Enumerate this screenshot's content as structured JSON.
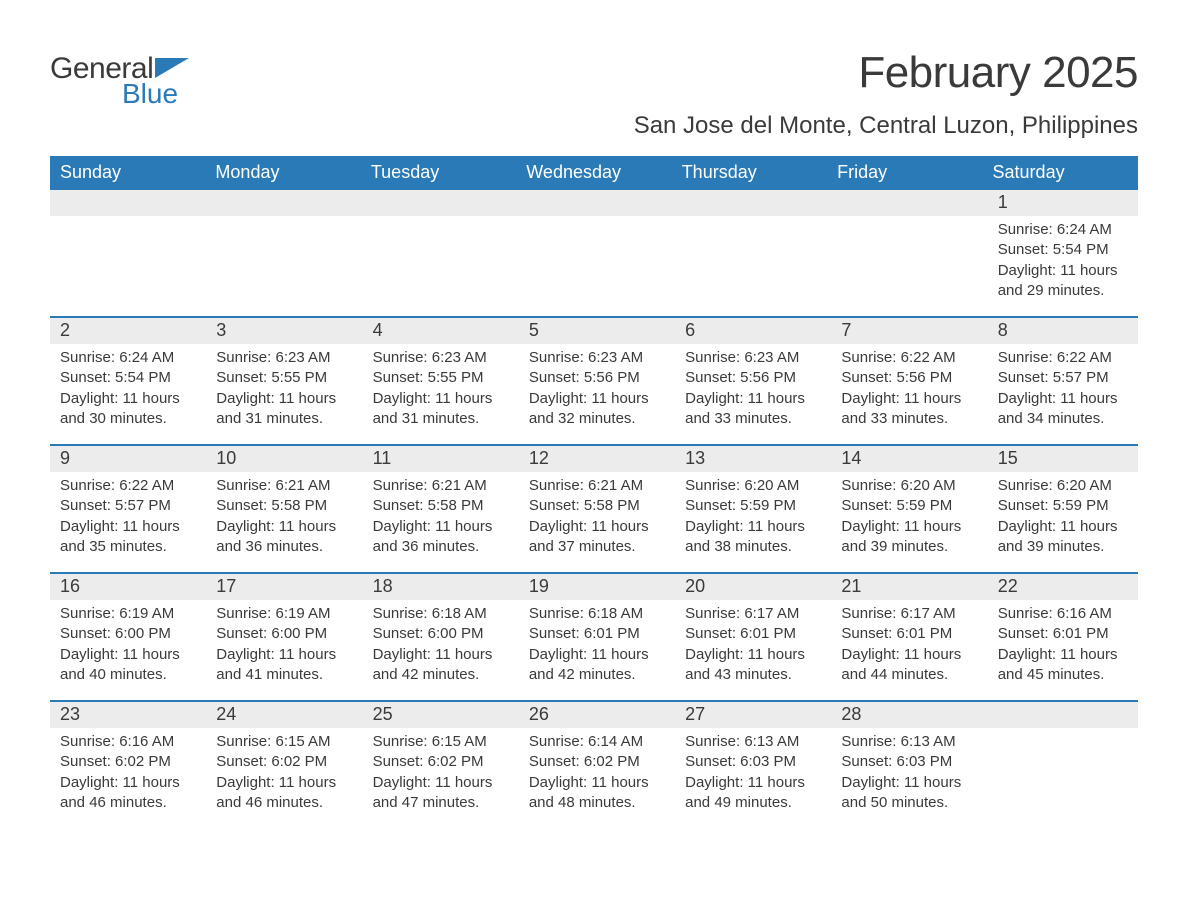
{
  "brand": {
    "part1": "General",
    "part2": "Blue",
    "logo_color": "#2a7ab8"
  },
  "title": "February 2025",
  "location": "San Jose del Monte, Central Luzon, Philippines",
  "colors": {
    "header_bg": "#2a7ab8",
    "header_text": "#ffffff",
    "daynum_bg": "#ececec",
    "text": "#3a3a3a",
    "week_border": "#2a7ab8",
    "background": "#ffffff"
  },
  "typography": {
    "title_fontsize": 44,
    "location_fontsize": 24,
    "dow_fontsize": 18,
    "daynum_fontsize": 18,
    "detail_fontsize": 15
  },
  "dow": [
    "Sunday",
    "Monday",
    "Tuesday",
    "Wednesday",
    "Thursday",
    "Friday",
    "Saturday"
  ],
  "weeks": [
    [
      {
        "n": "",
        "sunrise": "",
        "sunset": "",
        "daylight": ""
      },
      {
        "n": "",
        "sunrise": "",
        "sunset": "",
        "daylight": ""
      },
      {
        "n": "",
        "sunrise": "",
        "sunset": "",
        "daylight": ""
      },
      {
        "n": "",
        "sunrise": "",
        "sunset": "",
        "daylight": ""
      },
      {
        "n": "",
        "sunrise": "",
        "sunset": "",
        "daylight": ""
      },
      {
        "n": "",
        "sunrise": "",
        "sunset": "",
        "daylight": ""
      },
      {
        "n": "1",
        "sunrise": "Sunrise: 6:24 AM",
        "sunset": "Sunset: 5:54 PM",
        "daylight": "Daylight: 11 hours and 29 minutes."
      }
    ],
    [
      {
        "n": "2",
        "sunrise": "Sunrise: 6:24 AM",
        "sunset": "Sunset: 5:54 PM",
        "daylight": "Daylight: 11 hours and 30 minutes."
      },
      {
        "n": "3",
        "sunrise": "Sunrise: 6:23 AM",
        "sunset": "Sunset: 5:55 PM",
        "daylight": "Daylight: 11 hours and 31 minutes."
      },
      {
        "n": "4",
        "sunrise": "Sunrise: 6:23 AM",
        "sunset": "Sunset: 5:55 PM",
        "daylight": "Daylight: 11 hours and 31 minutes."
      },
      {
        "n": "5",
        "sunrise": "Sunrise: 6:23 AM",
        "sunset": "Sunset: 5:56 PM",
        "daylight": "Daylight: 11 hours and 32 minutes."
      },
      {
        "n": "6",
        "sunrise": "Sunrise: 6:23 AM",
        "sunset": "Sunset: 5:56 PM",
        "daylight": "Daylight: 11 hours and 33 minutes."
      },
      {
        "n": "7",
        "sunrise": "Sunrise: 6:22 AM",
        "sunset": "Sunset: 5:56 PM",
        "daylight": "Daylight: 11 hours and 33 minutes."
      },
      {
        "n": "8",
        "sunrise": "Sunrise: 6:22 AM",
        "sunset": "Sunset: 5:57 PM",
        "daylight": "Daylight: 11 hours and 34 minutes."
      }
    ],
    [
      {
        "n": "9",
        "sunrise": "Sunrise: 6:22 AM",
        "sunset": "Sunset: 5:57 PM",
        "daylight": "Daylight: 11 hours and 35 minutes."
      },
      {
        "n": "10",
        "sunrise": "Sunrise: 6:21 AM",
        "sunset": "Sunset: 5:58 PM",
        "daylight": "Daylight: 11 hours and 36 minutes."
      },
      {
        "n": "11",
        "sunrise": "Sunrise: 6:21 AM",
        "sunset": "Sunset: 5:58 PM",
        "daylight": "Daylight: 11 hours and 36 minutes."
      },
      {
        "n": "12",
        "sunrise": "Sunrise: 6:21 AM",
        "sunset": "Sunset: 5:58 PM",
        "daylight": "Daylight: 11 hours and 37 minutes."
      },
      {
        "n": "13",
        "sunrise": "Sunrise: 6:20 AM",
        "sunset": "Sunset: 5:59 PM",
        "daylight": "Daylight: 11 hours and 38 minutes."
      },
      {
        "n": "14",
        "sunrise": "Sunrise: 6:20 AM",
        "sunset": "Sunset: 5:59 PM",
        "daylight": "Daylight: 11 hours and 39 minutes."
      },
      {
        "n": "15",
        "sunrise": "Sunrise: 6:20 AM",
        "sunset": "Sunset: 5:59 PM",
        "daylight": "Daylight: 11 hours and 39 minutes."
      }
    ],
    [
      {
        "n": "16",
        "sunrise": "Sunrise: 6:19 AM",
        "sunset": "Sunset: 6:00 PM",
        "daylight": "Daylight: 11 hours and 40 minutes."
      },
      {
        "n": "17",
        "sunrise": "Sunrise: 6:19 AM",
        "sunset": "Sunset: 6:00 PM",
        "daylight": "Daylight: 11 hours and 41 minutes."
      },
      {
        "n": "18",
        "sunrise": "Sunrise: 6:18 AM",
        "sunset": "Sunset: 6:00 PM",
        "daylight": "Daylight: 11 hours and 42 minutes."
      },
      {
        "n": "19",
        "sunrise": "Sunrise: 6:18 AM",
        "sunset": "Sunset: 6:01 PM",
        "daylight": "Daylight: 11 hours and 42 minutes."
      },
      {
        "n": "20",
        "sunrise": "Sunrise: 6:17 AM",
        "sunset": "Sunset: 6:01 PM",
        "daylight": "Daylight: 11 hours and 43 minutes."
      },
      {
        "n": "21",
        "sunrise": "Sunrise: 6:17 AM",
        "sunset": "Sunset: 6:01 PM",
        "daylight": "Daylight: 11 hours and 44 minutes."
      },
      {
        "n": "22",
        "sunrise": "Sunrise: 6:16 AM",
        "sunset": "Sunset: 6:01 PM",
        "daylight": "Daylight: 11 hours and 45 minutes."
      }
    ],
    [
      {
        "n": "23",
        "sunrise": "Sunrise: 6:16 AM",
        "sunset": "Sunset: 6:02 PM",
        "daylight": "Daylight: 11 hours and 46 minutes."
      },
      {
        "n": "24",
        "sunrise": "Sunrise: 6:15 AM",
        "sunset": "Sunset: 6:02 PM",
        "daylight": "Daylight: 11 hours and 46 minutes."
      },
      {
        "n": "25",
        "sunrise": "Sunrise: 6:15 AM",
        "sunset": "Sunset: 6:02 PM",
        "daylight": "Daylight: 11 hours and 47 minutes."
      },
      {
        "n": "26",
        "sunrise": "Sunrise: 6:14 AM",
        "sunset": "Sunset: 6:02 PM",
        "daylight": "Daylight: 11 hours and 48 minutes."
      },
      {
        "n": "27",
        "sunrise": "Sunrise: 6:13 AM",
        "sunset": "Sunset: 6:03 PM",
        "daylight": "Daylight: 11 hours and 49 minutes."
      },
      {
        "n": "28",
        "sunrise": "Sunrise: 6:13 AM",
        "sunset": "Sunset: 6:03 PM",
        "daylight": "Daylight: 11 hours and 50 minutes."
      },
      {
        "n": "",
        "sunrise": "",
        "sunset": "",
        "daylight": ""
      }
    ]
  ]
}
